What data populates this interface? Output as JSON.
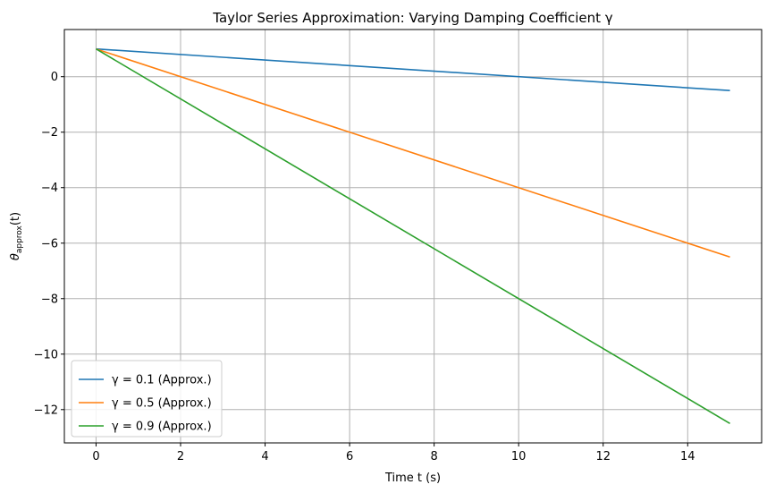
{
  "chart_data": {
    "type": "line",
    "title": "Taylor Series Approximation: Varying Damping Coefficient γ",
    "xlabel": "Time t (s)",
    "ylabel": "θapprox(t)",
    "xlim": [
      -0.75,
      15.75
    ],
    "ylim": [
      -13.2,
      1.7
    ],
    "xticks": [
      0,
      2,
      4,
      6,
      8,
      10,
      12,
      14
    ],
    "yticks": [
      0,
      -2,
      -4,
      -6,
      -8,
      -10,
      -12
    ],
    "xtick_labels": [
      "0",
      "2",
      "4",
      "6",
      "8",
      "10",
      "12",
      "14"
    ],
    "ytick_labels": [
      "0",
      "−2",
      "−4",
      "−6",
      "−8",
      "−10",
      "−12"
    ],
    "grid": true,
    "legend_position": "lower-left",
    "series": [
      {
        "name": "γ = 0.1 (Approx.)",
        "color": "#1f77b4",
        "x": [
          0,
          15
        ],
        "y": [
          1,
          -0.5
        ]
      },
      {
        "name": "γ = 0.5 (Approx.)",
        "color": "#ff7f0e",
        "x": [
          0,
          15
        ],
        "y": [
          1,
          -6.5
        ]
      },
      {
        "name": "γ = 0.9 (Approx.)",
        "color": "#2ca02c",
        "x": [
          0,
          15
        ],
        "y": [
          1,
          -12.5
        ]
      }
    ]
  }
}
